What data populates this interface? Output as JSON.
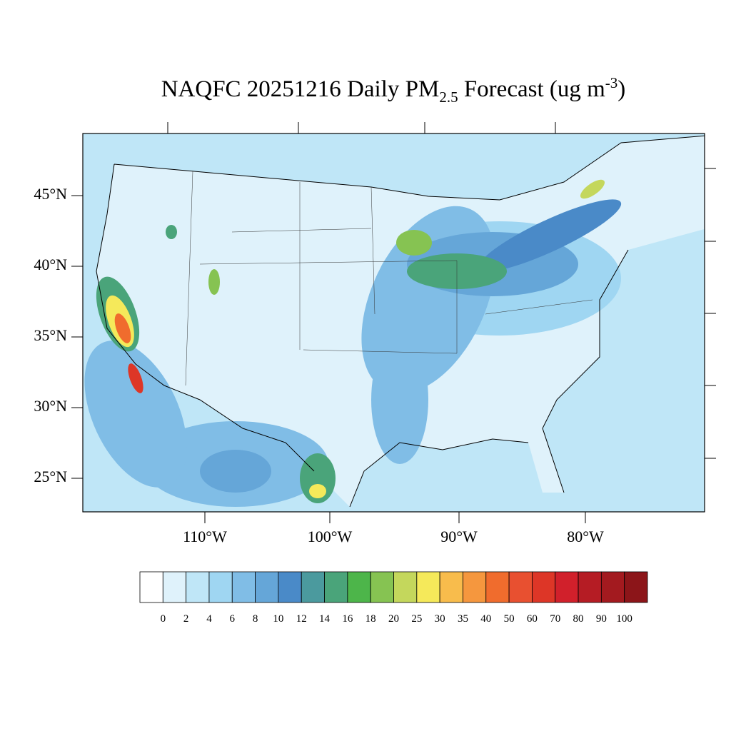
{
  "title": {
    "main": "NAQFC 20251216 Daily PM",
    "sub": "2.5",
    "rest": " Forecast (ug m",
    "sup": "-3",
    "end": ")"
  },
  "map": {
    "lat_labels": [
      "45°N",
      "40°N",
      "35°N",
      "30°N",
      "25°N"
    ],
    "lon_labels": [
      "110°W",
      "100°W",
      "90°W",
      "80°W"
    ]
  },
  "colorbar": {
    "labels": [
      "0",
      "2",
      "4",
      "6",
      "8",
      "10",
      "12",
      "14",
      "16",
      "18",
      "20",
      "25",
      "30",
      "35",
      "40",
      "50",
      "60",
      "70",
      "80",
      "90",
      "100"
    ],
    "colors": [
      "#ffffff",
      "#dff2fb",
      "#bfe6f7",
      "#9fd6f2",
      "#80bde6",
      "#65a6d8",
      "#4a8ac8",
      "#4b9a9e",
      "#4aa47a",
      "#4db54a",
      "#86c352",
      "#c4d75c",
      "#f5e95a",
      "#f8bc4c",
      "#f5973e",
      "#f06c2d",
      "#e85030",
      "#dd3627",
      "#d1202b",
      "#b51c24",
      "#a31a1f",
      "#8c1519"
    ]
  }
}
